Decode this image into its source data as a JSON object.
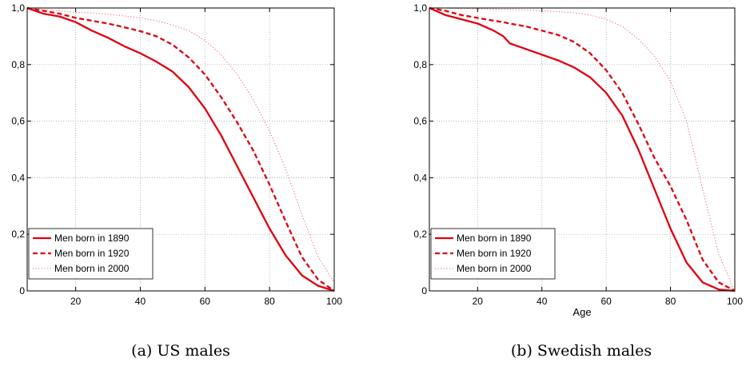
{
  "chart_data": [
    {
      "type": "line",
      "caption": "(a) US males",
      "xlabel": "",
      "ylabel": "",
      "xlim": [
        5,
        100
      ],
      "ylim": [
        0,
        1
      ],
      "xticks": [
        20,
        40,
        60,
        80,
        100
      ],
      "yticks": [
        0,
        0.2,
        0.4,
        0.6,
        0.8,
        1.0
      ],
      "xtick_labels": [
        "20",
        "40",
        "60",
        "80",
        "100"
      ],
      "ytick_labels": [
        "0",
        "0,2",
        "0,4",
        "0,6",
        "0,8",
        "1,0"
      ],
      "grid": true,
      "legend_position": "bottom-left",
      "x": [
        5,
        10,
        15,
        20,
        25,
        30,
        35,
        40,
        45,
        50,
        55,
        60,
        65,
        70,
        75,
        80,
        85,
        90,
        95,
        100
      ],
      "series": [
        {
          "name": "Men born in 1890",
          "style": "solid",
          "color": "#e0000f",
          "values": [
            1.0,
            0.98,
            0.97,
            0.95,
            0.92,
            0.895,
            0.865,
            0.84,
            0.81,
            0.775,
            0.72,
            0.645,
            0.55,
            0.44,
            0.33,
            0.22,
            0.125,
            0.055,
            0.018,
            0.0
          ]
        },
        {
          "name": "Men born in 1920",
          "style": "dashed",
          "color": "#e0000f",
          "values": [
            1.0,
            0.99,
            0.98,
            0.965,
            0.955,
            0.945,
            0.932,
            0.918,
            0.9,
            0.87,
            0.825,
            0.765,
            0.685,
            0.595,
            0.495,
            0.375,
            0.245,
            0.12,
            0.04,
            0.0
          ]
        },
        {
          "name": "Men born in 2000",
          "style": "dotted",
          "color": "#f07070",
          "values": [
            1.0,
            0.995,
            0.99,
            0.985,
            0.982,
            0.978,
            0.972,
            0.965,
            0.955,
            0.94,
            0.92,
            0.885,
            0.835,
            0.765,
            0.675,
            0.565,
            0.43,
            0.27,
            0.12,
            0.03
          ]
        }
      ]
    },
    {
      "type": "line",
      "caption": "(b) Swedish males",
      "xlabel": "Age",
      "ylabel": "",
      "xlim": [
        5,
        100
      ],
      "ylim": [
        0,
        1
      ],
      "xticks": [
        20,
        40,
        60,
        80,
        100
      ],
      "yticks": [
        0,
        0.2,
        0.4,
        0.6,
        0.8,
        1.0
      ],
      "xtick_labels": [
        "20",
        "40",
        "60",
        "80",
        "100"
      ],
      "ytick_labels": [
        "0",
        "0,2",
        "0,4",
        "0,6",
        "0,8",
        "1,0"
      ],
      "grid": true,
      "legend_position": "bottom-left",
      "x": [
        5,
        10,
        15,
        20,
        25,
        28,
        30,
        35,
        40,
        45,
        50,
        55,
        60,
        65,
        70,
        75,
        80,
        85,
        90,
        95,
        100
      ],
      "series": [
        {
          "name": "Men born in 1890",
          "style": "solid",
          "color": "#e0000f",
          "values": [
            1.0,
            0.975,
            0.96,
            0.945,
            0.92,
            0.9,
            0.875,
            0.855,
            0.835,
            0.815,
            0.79,
            0.755,
            0.7,
            0.62,
            0.5,
            0.36,
            0.22,
            0.1,
            0.03,
            0.005,
            0.0
          ]
        },
        {
          "name": "Men born in 1920",
          "style": "dashed",
          "color": "#e0000f",
          "values": [
            1.0,
            0.99,
            0.975,
            0.965,
            0.955,
            0.95,
            0.945,
            0.935,
            0.92,
            0.905,
            0.88,
            0.84,
            0.78,
            0.7,
            0.59,
            0.47,
            0.37,
            0.25,
            0.11,
            0.03,
            0.0
          ]
        },
        {
          "name": "Men born in 2000",
          "style": "dotted",
          "color": "#f07070",
          "values": [
            1.0,
            1.0,
            0.998,
            0.997,
            0.996,
            0.995,
            0.995,
            0.993,
            0.99,
            0.987,
            0.983,
            0.975,
            0.96,
            0.935,
            0.89,
            0.83,
            0.74,
            0.6,
            0.36,
            0.13,
            0.0
          ]
        }
      ]
    }
  ]
}
